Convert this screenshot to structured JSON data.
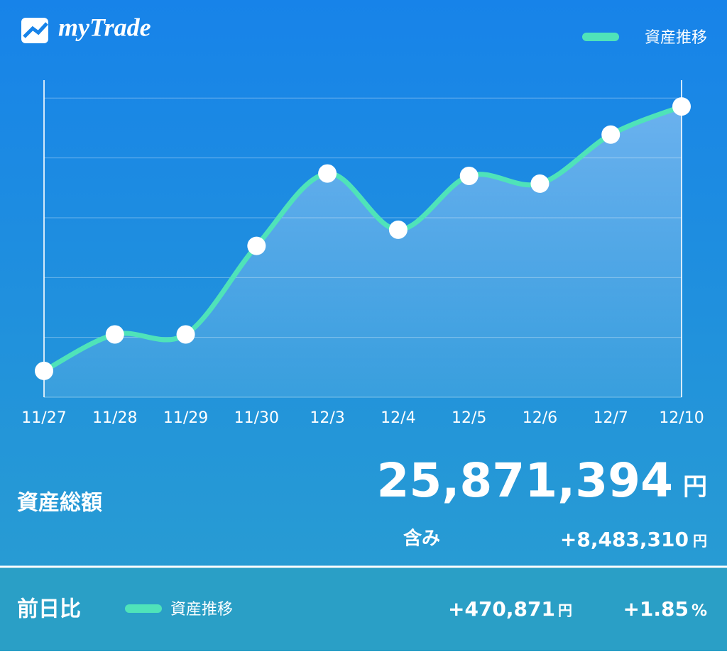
{
  "app": {
    "logo": "myTrade"
  },
  "chart_data": {
    "type": "line",
    "categories": [
      "11/27",
      "11/28",
      "11/29",
      "11/30",
      "12/3",
      "12/4",
      "12/5",
      "12/6",
      "12/7",
      "12/10"
    ],
    "series": [
      {
        "name": "資産推移",
        "color": "#4fe3b9",
        "values": [
          0.44,
          1.05,
          1.05,
          2.53,
          3.74,
          2.8,
          3.7,
          3.57,
          4.39,
          4.86
        ]
      }
    ],
    "ylim": [
      0,
      5.3
    ],
    "gridlines": [
      1,
      2,
      3,
      4,
      5
    ],
    "grid": true,
    "legend": "top-right"
  },
  "total": {
    "label": "資産総額",
    "amount": "25,871,394",
    "unit": "円",
    "unrealized_label": "含み",
    "unrealized": "+8,483,310",
    "unrealized_unit": "円"
  },
  "daily": {
    "label": "前日比",
    "legend": "資産推移",
    "amount": "+470,871",
    "unit": "円",
    "percent": "+1.85",
    "percent_unit": "%"
  }
}
